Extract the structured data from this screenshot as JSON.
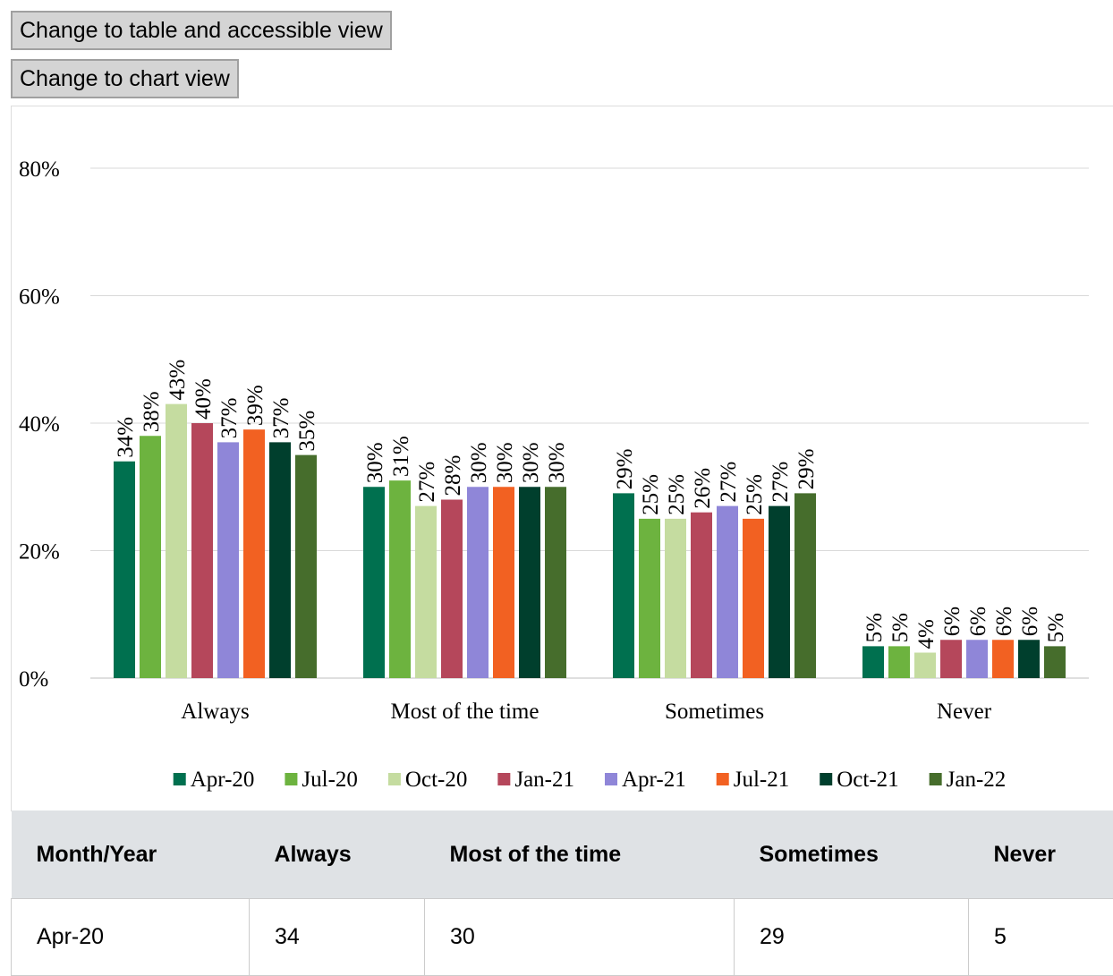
{
  "buttons": [
    "Change to table and accessible view",
    "Change to chart view"
  ],
  "chart_data": {
    "type": "bar",
    "categories": [
      "Always",
      "Most of the time",
      "Sometimes",
      "Never"
    ],
    "series": [
      {
        "name": "Apr-20",
        "color": "#00704f",
        "values": [
          34,
          30,
          29,
          5
        ],
        "value_labels": [
          "34%",
          "30%",
          "29%",
          "5%"
        ]
      },
      {
        "name": "Jul-20",
        "color": "#6db33f",
        "values": [
          38,
          31,
          25,
          5
        ],
        "value_labels": [
          "38%",
          "31%",
          "25%",
          "5%"
        ]
      },
      {
        "name": "Oct-20",
        "color": "#c5dca0",
        "values": [
          43,
          27,
          25,
          4
        ],
        "value_labels": [
          "43%",
          "27%",
          "25%",
          "4%"
        ]
      },
      {
        "name": "Jan-21",
        "color": "#b5475b",
        "values": [
          40,
          28,
          26,
          6
        ],
        "value_labels": [
          "40%",
          "28%",
          "26%",
          "6%"
        ]
      },
      {
        "name": "Apr-21",
        "color": "#8f86d8",
        "values": [
          37,
          30,
          27,
          6
        ],
        "value_labels": [
          "37%",
          "30%",
          "27%",
          "6%"
        ]
      },
      {
        "name": "Jul-21",
        "color": "#f26122",
        "values": [
          39,
          30,
          25,
          6
        ],
        "value_labels": [
          "39%",
          "30%",
          "25%",
          "6%"
        ]
      },
      {
        "name": "Oct-21",
        "color": "#003f2d",
        "values": [
          37,
          30,
          27,
          6
        ],
        "value_labels": [
          "37%",
          "30%",
          "27%",
          "6%"
        ]
      },
      {
        "name": "Jan-22",
        "color": "#466d2c",
        "values": [
          35,
          30,
          29,
          5
        ],
        "value_labels": [
          "35%",
          "30%",
          "29%",
          "5%"
        ]
      }
    ],
    "ylim": [
      0,
      80
    ],
    "yticks": [
      {
        "value": 0,
        "label": "0%"
      },
      {
        "value": 20,
        "label": "20%"
      },
      {
        "value": 40,
        "label": "40%"
      },
      {
        "value": 60,
        "label": "60%"
      },
      {
        "value": 80,
        "label": "80%"
      }
    ],
    "grid": true,
    "legend": "bottom"
  },
  "table": {
    "header": [
      "Month/Year",
      "Always",
      "Most of the time",
      "Sometimes",
      "Never"
    ],
    "rows": [
      [
        "Apr-20",
        34,
        30,
        29,
        5
      ]
    ]
  }
}
